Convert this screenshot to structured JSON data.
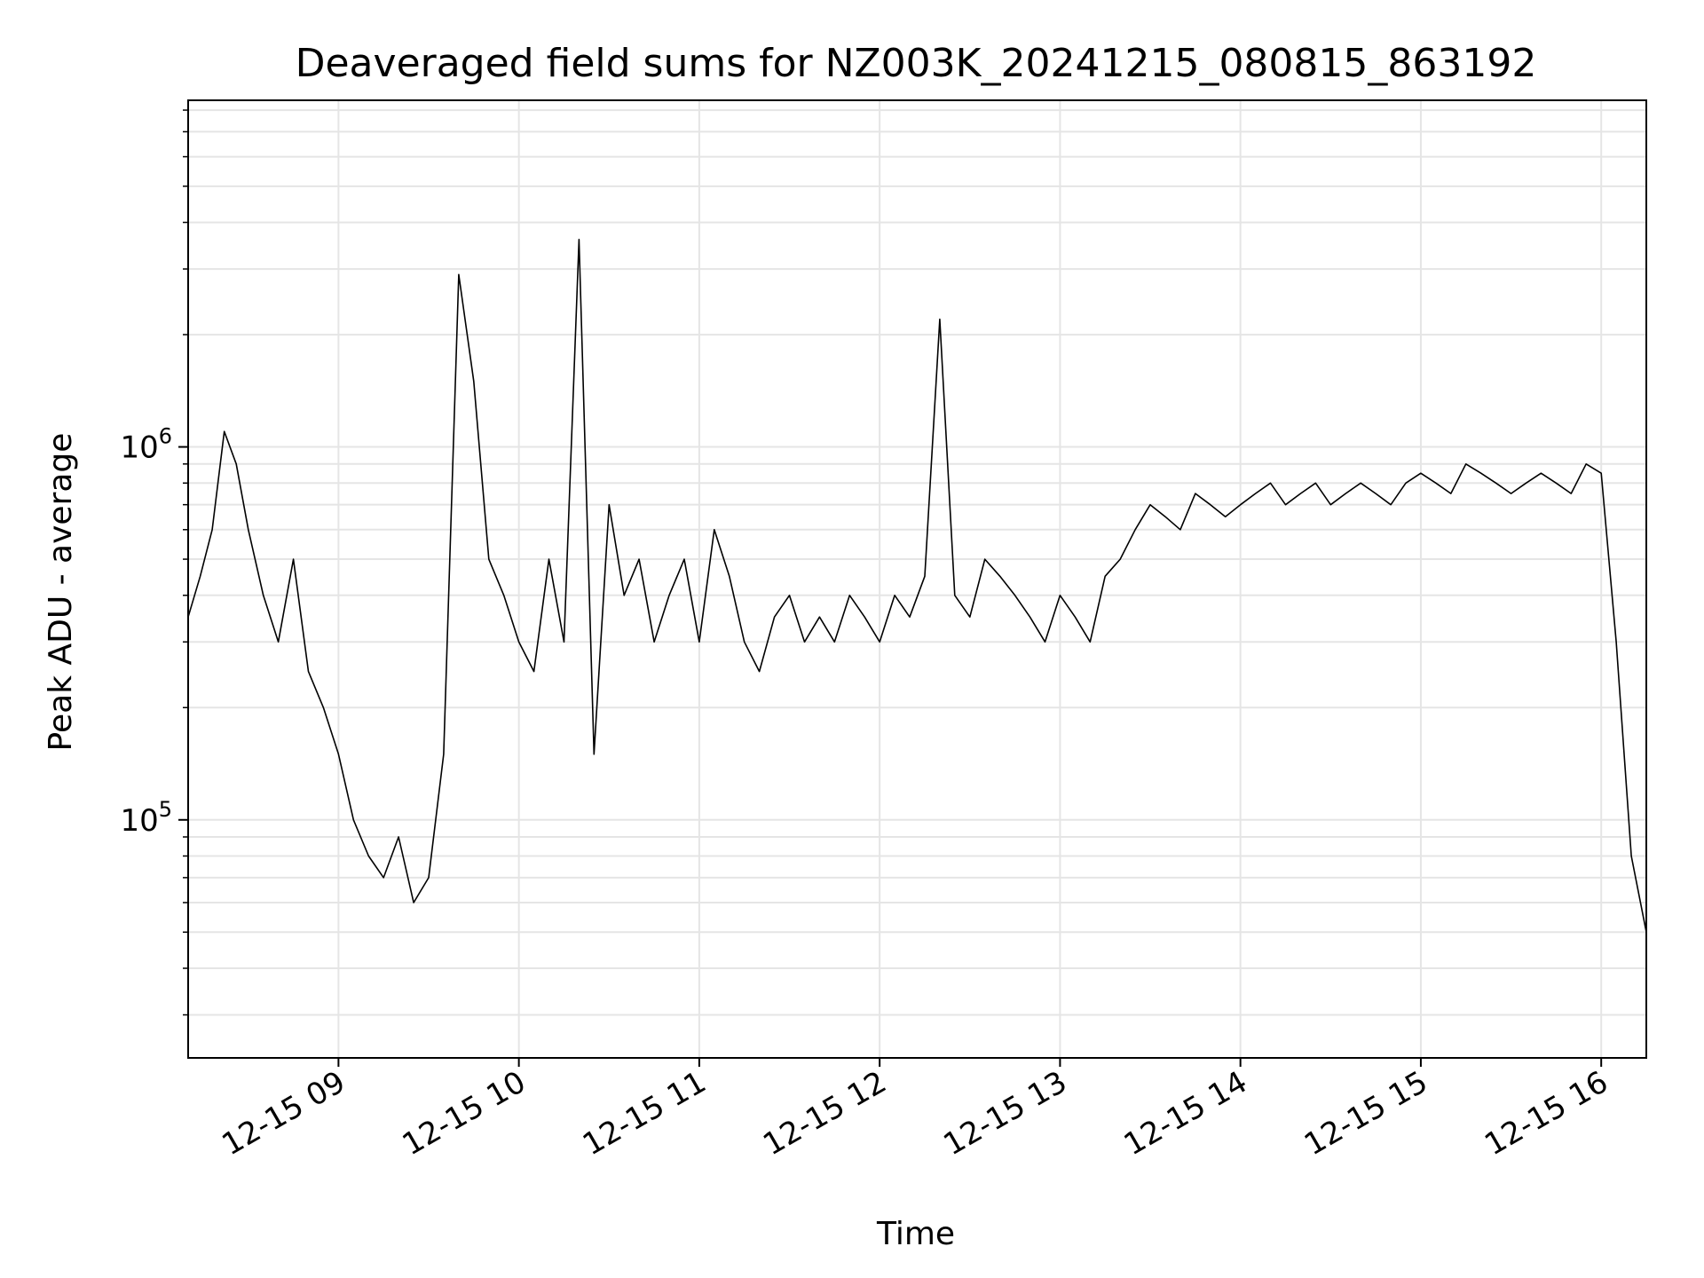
{
  "chart_data": {
    "type": "line",
    "title": "Deaveraged field sums for NZ003K_20241215_080815_863192",
    "xlabel": "Time",
    "ylabel": "Peak ADU - average",
    "y_scale": "log",
    "ylim": [
      23000,
      8500000
    ],
    "xlim": [
      "2024-12-15 08:10",
      "2024-12-15 16:15"
    ],
    "grid": true,
    "line_color": "#000000",
    "grid_color": "#e5e5e5",
    "x_ticks": [
      {
        "time": "2024-12-15 09:00",
        "label": "12-15 09"
      },
      {
        "time": "2024-12-15 10:00",
        "label": "12-15 10"
      },
      {
        "time": "2024-12-15 11:00",
        "label": "12-15 11"
      },
      {
        "time": "2024-12-15 12:00",
        "label": "12-15 12"
      },
      {
        "time": "2024-12-15 13:00",
        "label": "12-15 13"
      },
      {
        "time": "2024-12-15 14:00",
        "label": "12-15 14"
      },
      {
        "time": "2024-12-15 15:00",
        "label": "12-15 15"
      },
      {
        "time": "2024-12-15 16:00",
        "label": "12-15 16"
      }
    ],
    "y_ticks": [
      {
        "value": 100000,
        "base": "10",
        "exp": "5"
      },
      {
        "value": 1000000,
        "base": "10",
        "exp": "6"
      }
    ],
    "series": [
      {
        "x": [
          "2024-12-15 08:10",
          "2024-12-15 08:14",
          "2024-12-15 08:18",
          "2024-12-15 08:22",
          "2024-12-15 08:26",
          "2024-12-15 08:30",
          "2024-12-15 08:35",
          "2024-12-15 08:40",
          "2024-12-15 08:45",
          "2024-12-15 08:50",
          "2024-12-15 08:55",
          "2024-12-15 09:00",
          "2024-12-15 09:05",
          "2024-12-15 09:10",
          "2024-12-15 09:15",
          "2024-12-15 09:20",
          "2024-12-15 09:25",
          "2024-12-15 09:30",
          "2024-12-15 09:35",
          "2024-12-15 09:40",
          "2024-12-15 09:45",
          "2024-12-15 09:50",
          "2024-12-15 09:55",
          "2024-12-15 10:00",
          "2024-12-15 10:05",
          "2024-12-15 10:10",
          "2024-12-15 10:15",
          "2024-12-15 10:20",
          "2024-12-15 10:25",
          "2024-12-15 10:30",
          "2024-12-15 10:35",
          "2024-12-15 10:40",
          "2024-12-15 10:45",
          "2024-12-15 10:50",
          "2024-12-15 10:55",
          "2024-12-15 11:00",
          "2024-12-15 11:05",
          "2024-12-15 11:10",
          "2024-12-15 11:15",
          "2024-12-15 11:20",
          "2024-12-15 11:25",
          "2024-12-15 11:30",
          "2024-12-15 11:35",
          "2024-12-15 11:40",
          "2024-12-15 11:45",
          "2024-12-15 11:50",
          "2024-12-15 11:55",
          "2024-12-15 12:00",
          "2024-12-15 12:05",
          "2024-12-15 12:10",
          "2024-12-15 12:15",
          "2024-12-15 12:20",
          "2024-12-15 12:25",
          "2024-12-15 12:30",
          "2024-12-15 12:35",
          "2024-12-15 12:40",
          "2024-12-15 12:45",
          "2024-12-15 12:50",
          "2024-12-15 12:55",
          "2024-12-15 13:00",
          "2024-12-15 13:05",
          "2024-12-15 13:10",
          "2024-12-15 13:15",
          "2024-12-15 13:20",
          "2024-12-15 13:25",
          "2024-12-15 13:30",
          "2024-12-15 13:35",
          "2024-12-15 13:40",
          "2024-12-15 13:45",
          "2024-12-15 13:50",
          "2024-12-15 13:55",
          "2024-12-15 14:00",
          "2024-12-15 14:05",
          "2024-12-15 14:10",
          "2024-12-15 14:15",
          "2024-12-15 14:20",
          "2024-12-15 14:25",
          "2024-12-15 14:30",
          "2024-12-15 14:35",
          "2024-12-15 14:40",
          "2024-12-15 14:45",
          "2024-12-15 14:50",
          "2024-12-15 14:55",
          "2024-12-15 15:00",
          "2024-12-15 15:05",
          "2024-12-15 15:10",
          "2024-12-15 15:15",
          "2024-12-15 15:20",
          "2024-12-15 15:25",
          "2024-12-15 15:30",
          "2024-12-15 15:35",
          "2024-12-15 15:40",
          "2024-12-15 15:45",
          "2024-12-15 15:50",
          "2024-12-15 15:55",
          "2024-12-15 16:00",
          "2024-12-15 16:05",
          "2024-12-15 16:10",
          "2024-12-15 16:15"
        ],
        "y": [
          350000,
          450000,
          600000,
          1100000,
          900000,
          600000,
          400000,
          300000,
          500000,
          250000,
          200000,
          150000,
          100000,
          80000,
          70000,
          90000,
          60000,
          70000,
          150000,
          2900000,
          1500000,
          500000,
          400000,
          300000,
          250000,
          500000,
          300000,
          3600000,
          150000,
          700000,
          400000,
          500000,
          300000,
          400000,
          500000,
          300000,
          600000,
          450000,
          300000,
          250000,
          350000,
          400000,
          300000,
          350000,
          300000,
          400000,
          350000,
          300000,
          400000,
          350000,
          450000,
          2200000,
          400000,
          350000,
          500000,
          450000,
          400000,
          350000,
          300000,
          400000,
          350000,
          300000,
          450000,
          500000,
          600000,
          700000,
          650000,
          600000,
          750000,
          700000,
          650000,
          700000,
          750000,
          800000,
          700000,
          750000,
          800000,
          700000,
          750000,
          800000,
          750000,
          700000,
          800000,
          850000,
          800000,
          750000,
          900000,
          850000,
          800000,
          750000,
          800000,
          850000,
          800000,
          750000,
          900000,
          850000,
          300000,
          80000,
          50000
        ]
      }
    ]
  }
}
